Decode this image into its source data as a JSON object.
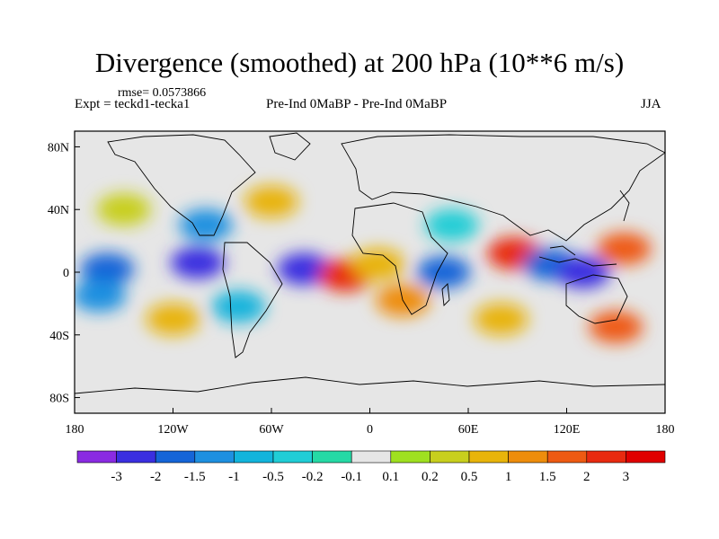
{
  "chart_data": {
    "type": "heatmap",
    "title": "Divergence (smoothed) at 200 hPa (10**6 m/s)",
    "left_string": "Expt = teckd1-tecka1",
    "rmse_string": "rmse= 0.0573866",
    "center_string": "Pre-Ind 0MaBP - Pre-Ind 0MaBP",
    "right_string": "JJA",
    "projection": "cylindrical-equidistant",
    "xlim": [
      -180,
      180
    ],
    "ylim": [
      -90,
      90
    ],
    "x_ticks": [
      {
        "value": -180,
        "label": "180"
      },
      {
        "value": -120,
        "label": "120W"
      },
      {
        "value": -60,
        "label": "60W"
      },
      {
        "value": 0,
        "label": "0"
      },
      {
        "value": 60,
        "label": "60E"
      },
      {
        "value": 120,
        "label": "120E"
      },
      {
        "value": 180,
        "label": "180"
      }
    ],
    "y_ticks": [
      {
        "value": 80,
        "label": "80N"
      },
      {
        "value": 40,
        "label": "40N"
      },
      {
        "value": 0,
        "label": "0"
      },
      {
        "value": -40,
        "label": "40S"
      },
      {
        "value": -80,
        "label": "80S"
      }
    ],
    "colorbar": {
      "labels": [
        "-3",
        "-2",
        "-1.5",
        "-1",
        "-0.5",
        "-0.2",
        "-0.1",
        "0.1",
        "0.2",
        "0.5",
        "1",
        "1.5",
        "2",
        "3"
      ],
      "colors": [
        "#8a2be2",
        "#3a2fe0",
        "#1565d8",
        "#1e90e0",
        "#12b4dc",
        "#20cdd6",
        "#25d9a5",
        "#e6e6e6",
        "#9fe020",
        "#c8cf1e",
        "#e8b40a",
        "#ee8d0c",
        "#ee5a12",
        "#e82a10",
        "#e00000"
      ]
    },
    "cells": [
      {
        "lon": -160,
        "lat": 2,
        "level": 2,
        "label": "-1.5"
      },
      {
        "lon": -165,
        "lat": -15,
        "level": 3,
        "label": "-1"
      },
      {
        "lon": -105,
        "lat": 6,
        "level": 1,
        "label": "-2"
      },
      {
        "lon": -80,
        "lat": -22,
        "level": 4,
        "label": "-0.5"
      },
      {
        "lon": -40,
        "lat": 2,
        "level": 1,
        "label": "-2"
      },
      {
        "lon": -15,
        "lat": -2,
        "level": 13,
        "label": "3"
      },
      {
        "lon": 5,
        "lat": 5,
        "level": 10,
        "label": "1"
      },
      {
        "lon": 20,
        "lat": -18,
        "level": 11,
        "label": "1.5"
      },
      {
        "lon": 45,
        "lat": 0,
        "level": 2,
        "label": "-1.5"
      },
      {
        "lon": 88,
        "lat": 12,
        "level": 13,
        "label": "3"
      },
      {
        "lon": 110,
        "lat": 5,
        "level": 2,
        "label": "-1.5"
      },
      {
        "lon": 130,
        "lat": 0,
        "level": 1,
        "label": "-2"
      },
      {
        "lon": 155,
        "lat": 15,
        "level": 12,
        "label": "2"
      },
      {
        "lon": 150,
        "lat": -35,
        "level": 12,
        "label": "2"
      },
      {
        "lon": -60,
        "lat": 45,
        "level": 10,
        "label": "1"
      },
      {
        "lon": -100,
        "lat": 30,
        "level": 3,
        "label": "-1"
      },
      {
        "lon": 50,
        "lat": 30,
        "level": 5,
        "label": "-0.2"
      },
      {
        "lon": 80,
        "lat": -30,
        "level": 10,
        "label": "1"
      },
      {
        "lon": -120,
        "lat": -30,
        "level": 10,
        "label": "1"
      },
      {
        "lon": -150,
        "lat": 40,
        "level": 9,
        "label": "0.5"
      }
    ]
  }
}
